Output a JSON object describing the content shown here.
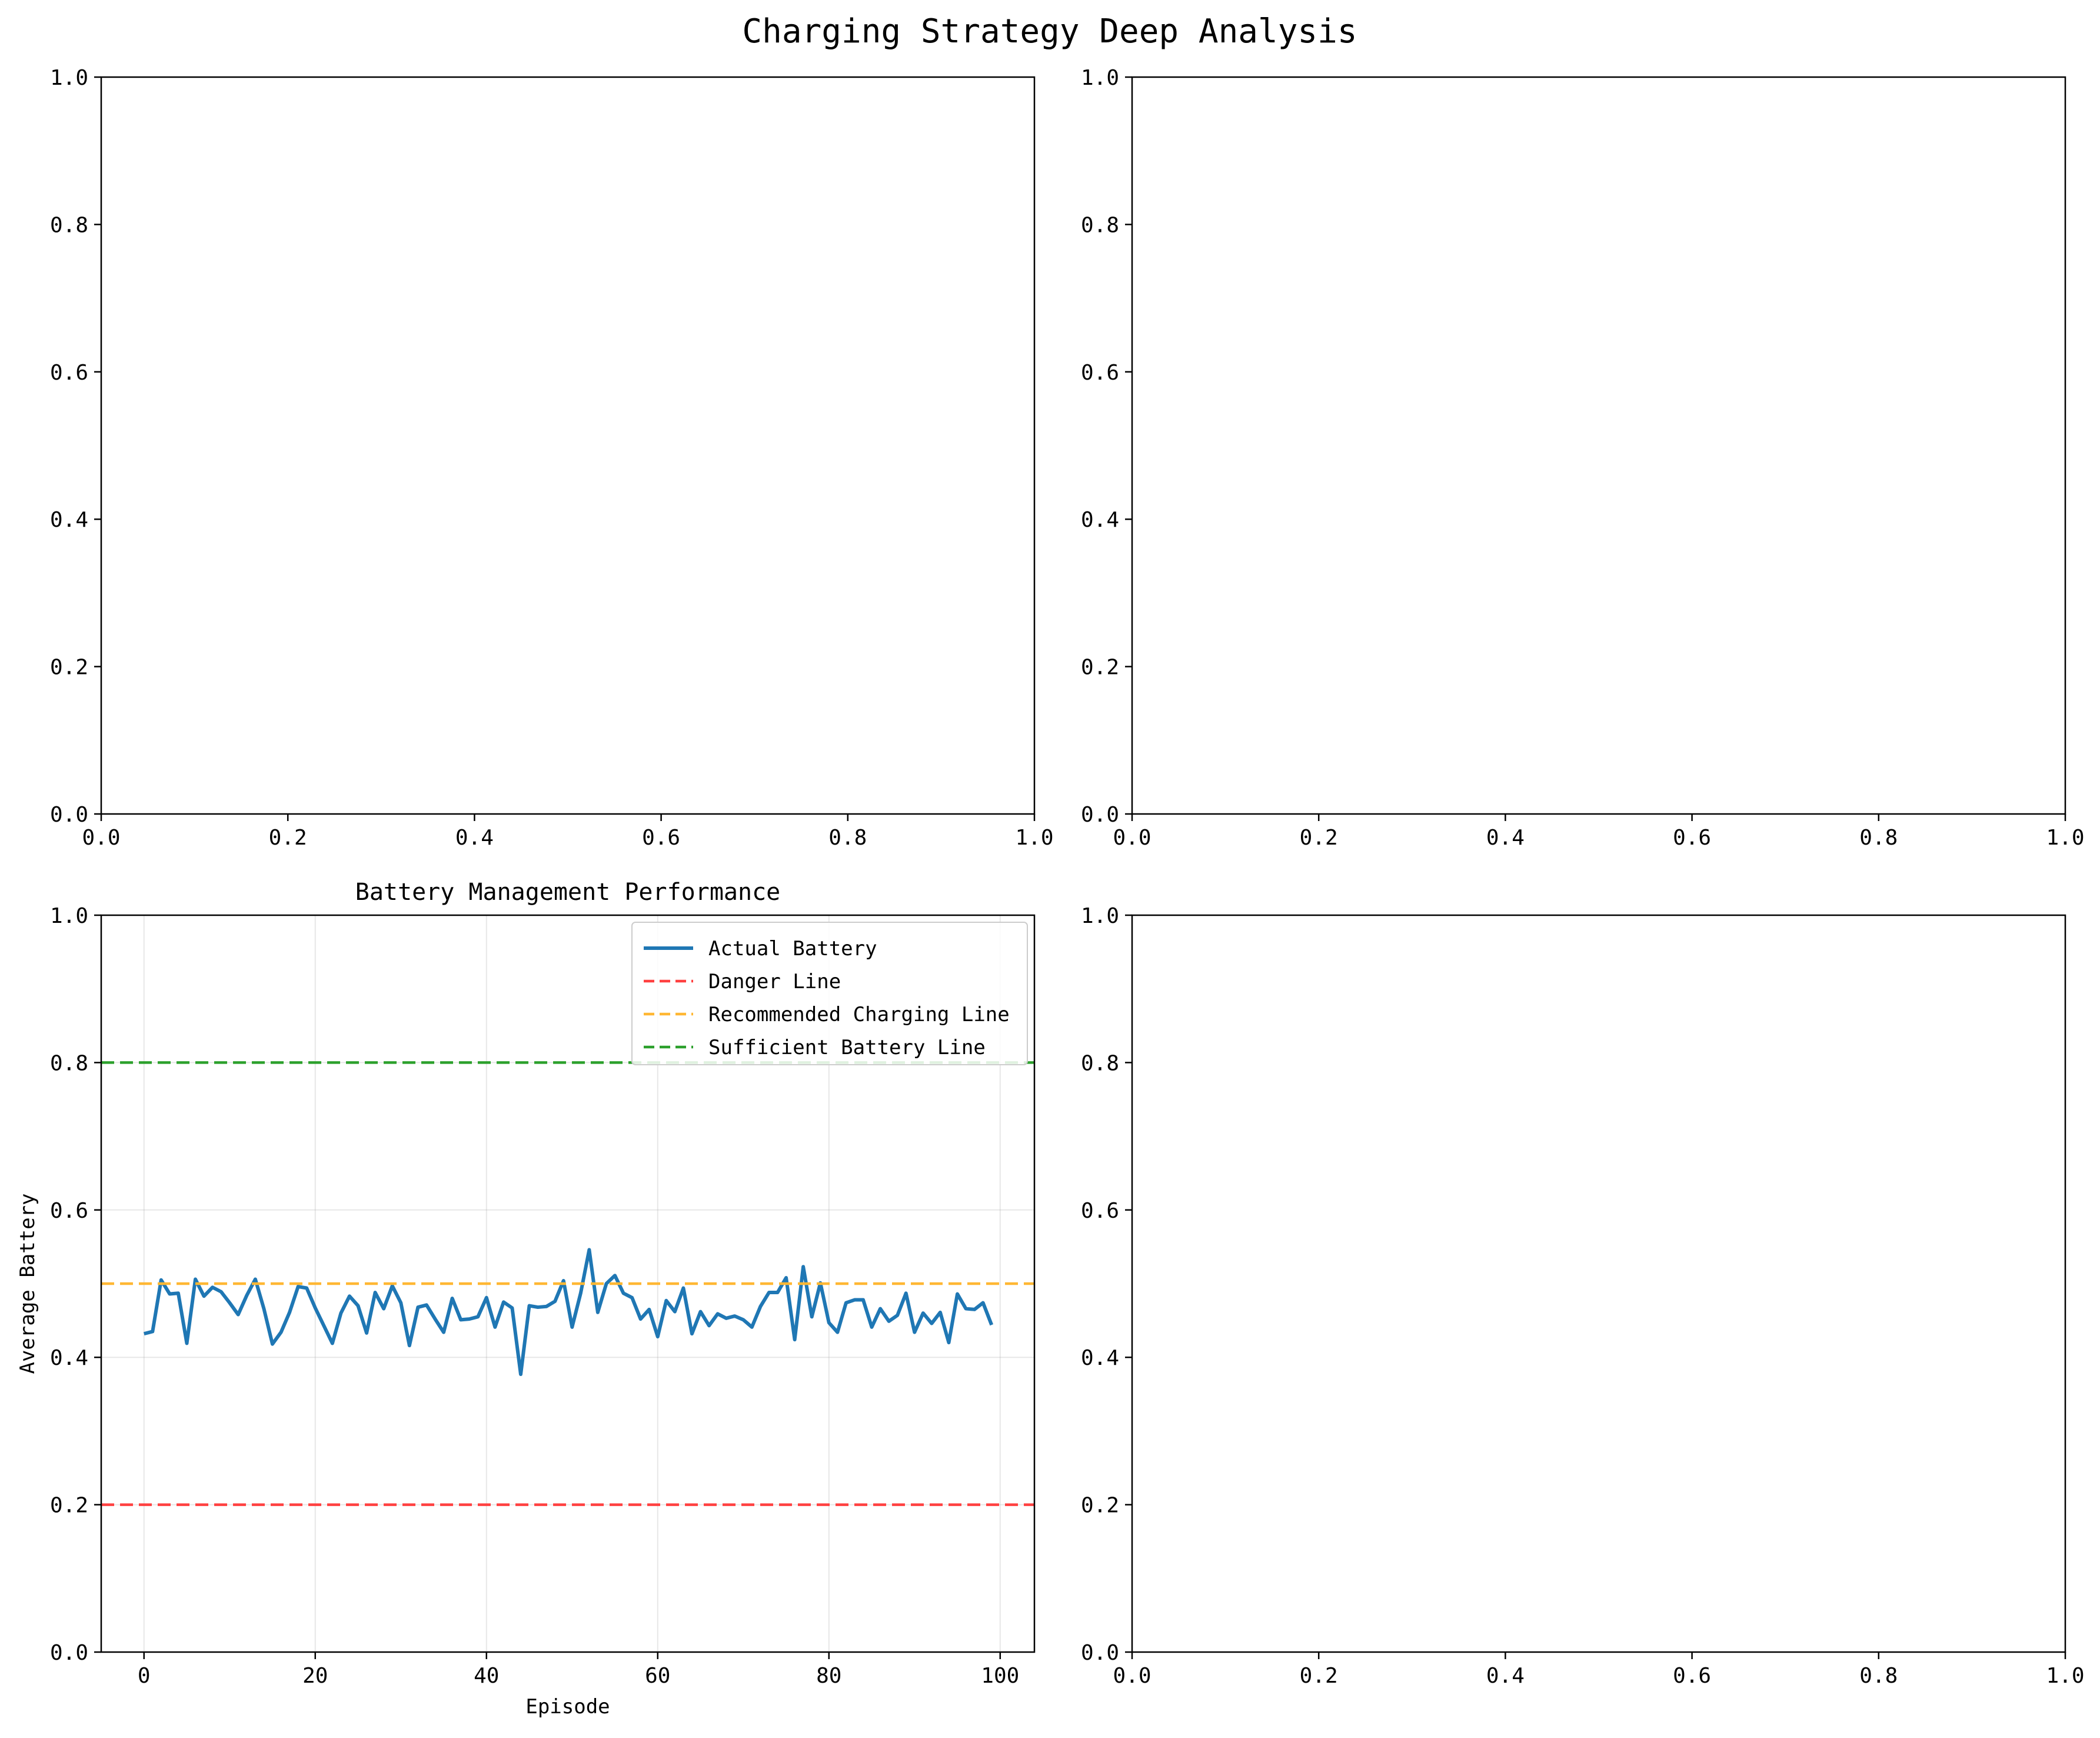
{
  "figure": {
    "title": "Charging Strategy Deep Analysis"
  },
  "chart_data": [
    {
      "panel": "top-left",
      "type": "line",
      "title": "",
      "xlabel": "",
      "ylabel": "",
      "xlim": [
        0,
        1
      ],
      "ylim": [
        0,
        1
      ],
      "xticks": [
        "0.0",
        "0.2",
        "0.4",
        "0.6",
        "0.8",
        "1.0"
      ],
      "yticks": [
        "0.0",
        "0.2",
        "0.4",
        "0.6",
        "0.8",
        "1.0"
      ],
      "grid": false,
      "series": []
    },
    {
      "panel": "top-right",
      "type": "line",
      "title": "",
      "xlabel": "",
      "ylabel": "",
      "xlim": [
        0,
        1
      ],
      "ylim": [
        0,
        1
      ],
      "xticks": [
        "0.0",
        "0.2",
        "0.4",
        "0.6",
        "0.8",
        "1.0"
      ],
      "yticks": [
        "0.0",
        "0.2",
        "0.4",
        "0.6",
        "0.8",
        "1.0"
      ],
      "grid": false,
      "series": []
    },
    {
      "panel": "bottom-left",
      "type": "line",
      "title": "Battery Management Performance",
      "xlabel": "Episode",
      "ylabel": "Average Battery",
      "xlim": [
        -5,
        104
      ],
      "ylim": [
        0,
        1
      ],
      "xticks": [
        "0",
        "20",
        "40",
        "60",
        "80",
        "100"
      ],
      "yticks": [
        "0.0",
        "0.2",
        "0.4",
        "0.6",
        "0.8",
        "1.0"
      ],
      "grid": true,
      "legend_position": "top-right",
      "series": [
        {
          "name": "Actual Battery",
          "color": "#1f77b4",
          "style": "solid",
          "x": [
            0,
            1,
            2,
            3,
            4,
            5,
            6,
            7,
            8,
            9,
            10,
            11,
            12,
            13,
            14,
            15,
            16,
            17,
            18,
            19,
            20,
            21,
            22,
            23,
            24,
            25,
            26,
            27,
            28,
            29,
            30,
            31,
            32,
            33,
            34,
            35,
            36,
            37,
            38,
            39,
            40,
            41,
            42,
            43,
            44,
            45,
            46,
            47,
            48,
            49,
            50,
            51,
            52,
            53,
            54,
            55,
            56,
            57,
            58,
            59,
            60,
            61,
            62,
            63,
            64,
            65,
            66,
            67,
            68,
            69,
            70,
            71,
            72,
            73,
            74,
            75,
            76,
            77,
            78,
            79,
            80,
            81,
            82,
            83,
            84,
            85,
            86,
            87,
            88,
            89,
            90,
            91,
            92,
            93,
            94,
            95,
            96,
            97,
            98,
            99
          ],
          "values": [
            0.432,
            0.435,
            0.505,
            0.486,
            0.487,
            0.419,
            0.506,
            0.483,
            0.495,
            0.489,
            0.474,
            0.458,
            0.484,
            0.506,
            0.466,
            0.418,
            0.434,
            0.461,
            0.496,
            0.494,
            0.467,
            0.443,
            0.419,
            0.46,
            0.483,
            0.47,
            0.433,
            0.488,
            0.466,
            0.497,
            0.474,
            0.416,
            0.468,
            0.471,
            0.452,
            0.434,
            0.48,
            0.451,
            0.452,
            0.455,
            0.481,
            0.441,
            0.475,
            0.467,
            0.377,
            0.47,
            0.468,
            0.469,
            0.476,
            0.504,
            0.441,
            0.487,
            0.546,
            0.461,
            0.5,
            0.511,
            0.487,
            0.481,
            0.452,
            0.465,
            0.428,
            0.477,
            0.462,
            0.494,
            0.432,
            0.462,
            0.443,
            0.459,
            0.453,
            0.456,
            0.451,
            0.441,
            0.469,
            0.488,
            0.488,
            0.508,
            0.424,
            0.523,
            0.455,
            0.501,
            0.447,
            0.434,
            0.474,
            0.478,
            0.478,
            0.441,
            0.466,
            0.449,
            0.457,
            0.487,
            0.434,
            0.46,
            0.446,
            0.461,
            0.42,
            0.486,
            0.466,
            0.465,
            0.474,
            0.444
          ]
        },
        {
          "name": "Danger Line",
          "color": "#ff4040",
          "style": "dashed",
          "y": 0.2
        },
        {
          "name": "Recommended Charging Line",
          "color": "#ffb733",
          "style": "dashed",
          "y": 0.5
        },
        {
          "name": "Sufficient Battery Line",
          "color": "#2ca02c",
          "style": "dashed",
          "y": 0.8
        }
      ]
    },
    {
      "panel": "bottom-right",
      "type": "line",
      "title": "",
      "xlabel": "",
      "ylabel": "",
      "xlim": [
        0,
        1
      ],
      "ylim": [
        0,
        1
      ],
      "xticks": [
        "0.0",
        "0.2",
        "0.4",
        "0.6",
        "0.8",
        "1.0"
      ],
      "yticks": [
        "0.0",
        "0.2",
        "0.4",
        "0.6",
        "0.8",
        "1.0"
      ],
      "grid": false,
      "series": []
    }
  ]
}
